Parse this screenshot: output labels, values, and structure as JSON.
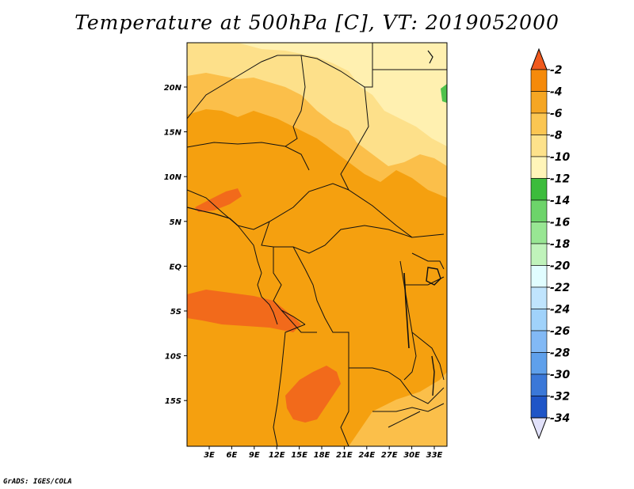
{
  "title": "Temperature at 500hPa [C], VT: 2019052000",
  "credit": "GrADS: IGES/COLA",
  "map": {
    "lat_labels": [
      "20N",
      "15N",
      "10N",
      "5N",
      "EQ",
      "5S",
      "10S",
      "15S"
    ],
    "lon_labels": [
      "3E",
      "6E",
      "9E",
      "12E",
      "15E",
      "18E",
      "21E",
      "24E",
      "27E",
      "30E",
      "33E"
    ]
  },
  "colorbar": {
    "labels": [
      "-2",
      "-4",
      "-6",
      "-8",
      "-10",
      "-12",
      "-14",
      "-16",
      "-18",
      "-20",
      "-22",
      "-24",
      "-26",
      "-28",
      "-30",
      "-32",
      "-34"
    ],
    "colors": [
      "#f05a1e",
      "#f58a0a",
      "#f5a623",
      "#fbc652",
      "#fde28b",
      "#fff5b9",
      "#3cbc3c",
      "#6dd46a",
      "#98e693",
      "#c0f3bb",
      "#e1fdff",
      "#c0e4fd",
      "#a0d2fa",
      "#82b9f5",
      "#5fa0eb",
      "#3b78d8",
      "#1f55c7",
      "#0e35a5",
      "#0c1a78"
    ],
    "top_arrow_color": "#f05a1e",
    "bottom_arrow_color": "#e1e1fa"
  }
}
